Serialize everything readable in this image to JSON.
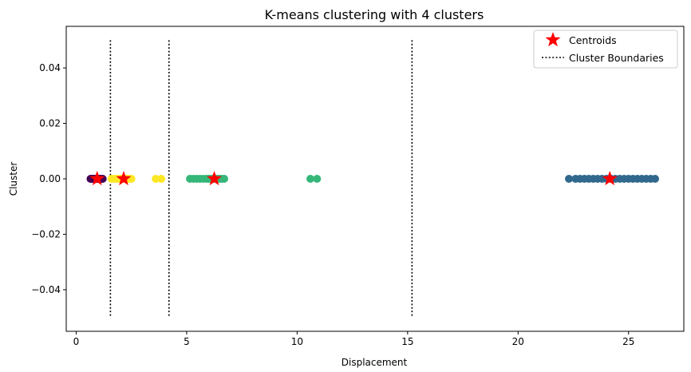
{
  "chart_data": {
    "type": "scatter",
    "title": "K-means clustering with 4 clusters",
    "xlabel": "Displacement",
    "ylabel": "Cluster",
    "xlim": [
      -0.45,
      27.5
    ],
    "ylim": [
      -0.055,
      0.055
    ],
    "xticks": [
      0,
      5,
      10,
      15,
      20,
      25
    ],
    "yticks": [
      -0.04,
      -0.02,
      0.0,
      0.02,
      0.04
    ],
    "ytick_labels": [
      "−0.04",
      "−0.02",
      "0.00",
      "0.02",
      "0.04"
    ],
    "grid": false,
    "legend_position": "top-right",
    "legend": [
      {
        "label": "Centroids",
        "marker": "star",
        "color": "#ff0000"
      },
      {
        "label": "Cluster Boundaries",
        "marker": "dotted-line",
        "color": "#000000"
      }
    ],
    "series": [
      {
        "color": "#440154",
        "x": [
          0.65,
          0.7,
          0.75,
          0.8,
          0.85,
          0.9,
          0.95,
          1.0,
          1.05,
          1.1,
          1.15,
          1.2
        ],
        "y": [
          0,
          0,
          0,
          0,
          0,
          0,
          0,
          0,
          0,
          0,
          0,
          0
        ]
      },
      {
        "color": "#fde725",
        "x": [
          1.6,
          1.7,
          1.8,
          1.9,
          2.0,
          2.05,
          2.1,
          2.2,
          2.3,
          2.4,
          2.5,
          3.6,
          3.85
        ],
        "y": [
          0,
          0,
          0,
          0,
          0,
          0,
          0,
          0,
          0,
          0,
          0,
          0,
          0
        ]
      },
      {
        "color": "#35b779",
        "x": [
          5.15,
          5.3,
          5.45,
          5.6,
          5.75,
          5.9,
          6.0,
          6.1,
          6.2,
          6.3,
          6.4,
          6.5,
          6.6,
          6.7,
          10.6,
          10.9
        ],
        "y": [
          0,
          0,
          0,
          0,
          0,
          0,
          0,
          0,
          0,
          0,
          0,
          0,
          0,
          0,
          0,
          0
        ]
      },
      {
        "color": "#31688e",
        "x": [
          22.3,
          22.6,
          22.8,
          23.0,
          23.2,
          23.4,
          23.6,
          23.8,
          24.0,
          24.2,
          24.4,
          24.6,
          24.8,
          25.0,
          25.2,
          25.4,
          25.6,
          25.8,
          26.0,
          26.2
        ],
        "y": [
          0,
          0,
          0,
          0,
          0,
          0,
          0,
          0,
          0,
          0,
          0,
          0,
          0,
          0,
          0,
          0,
          0,
          0,
          0,
          0
        ]
      }
    ],
    "centroids": {
      "color": "#ff0000",
      "x": [
        0.95,
        2.15,
        6.25,
        24.15
      ],
      "y": [
        0,
        0,
        0,
        0
      ]
    },
    "boundaries": {
      "color": "#000000",
      "x": [
        1.55,
        4.2,
        15.2
      ],
      "y_range": [
        -0.05,
        0.05
      ]
    }
  }
}
